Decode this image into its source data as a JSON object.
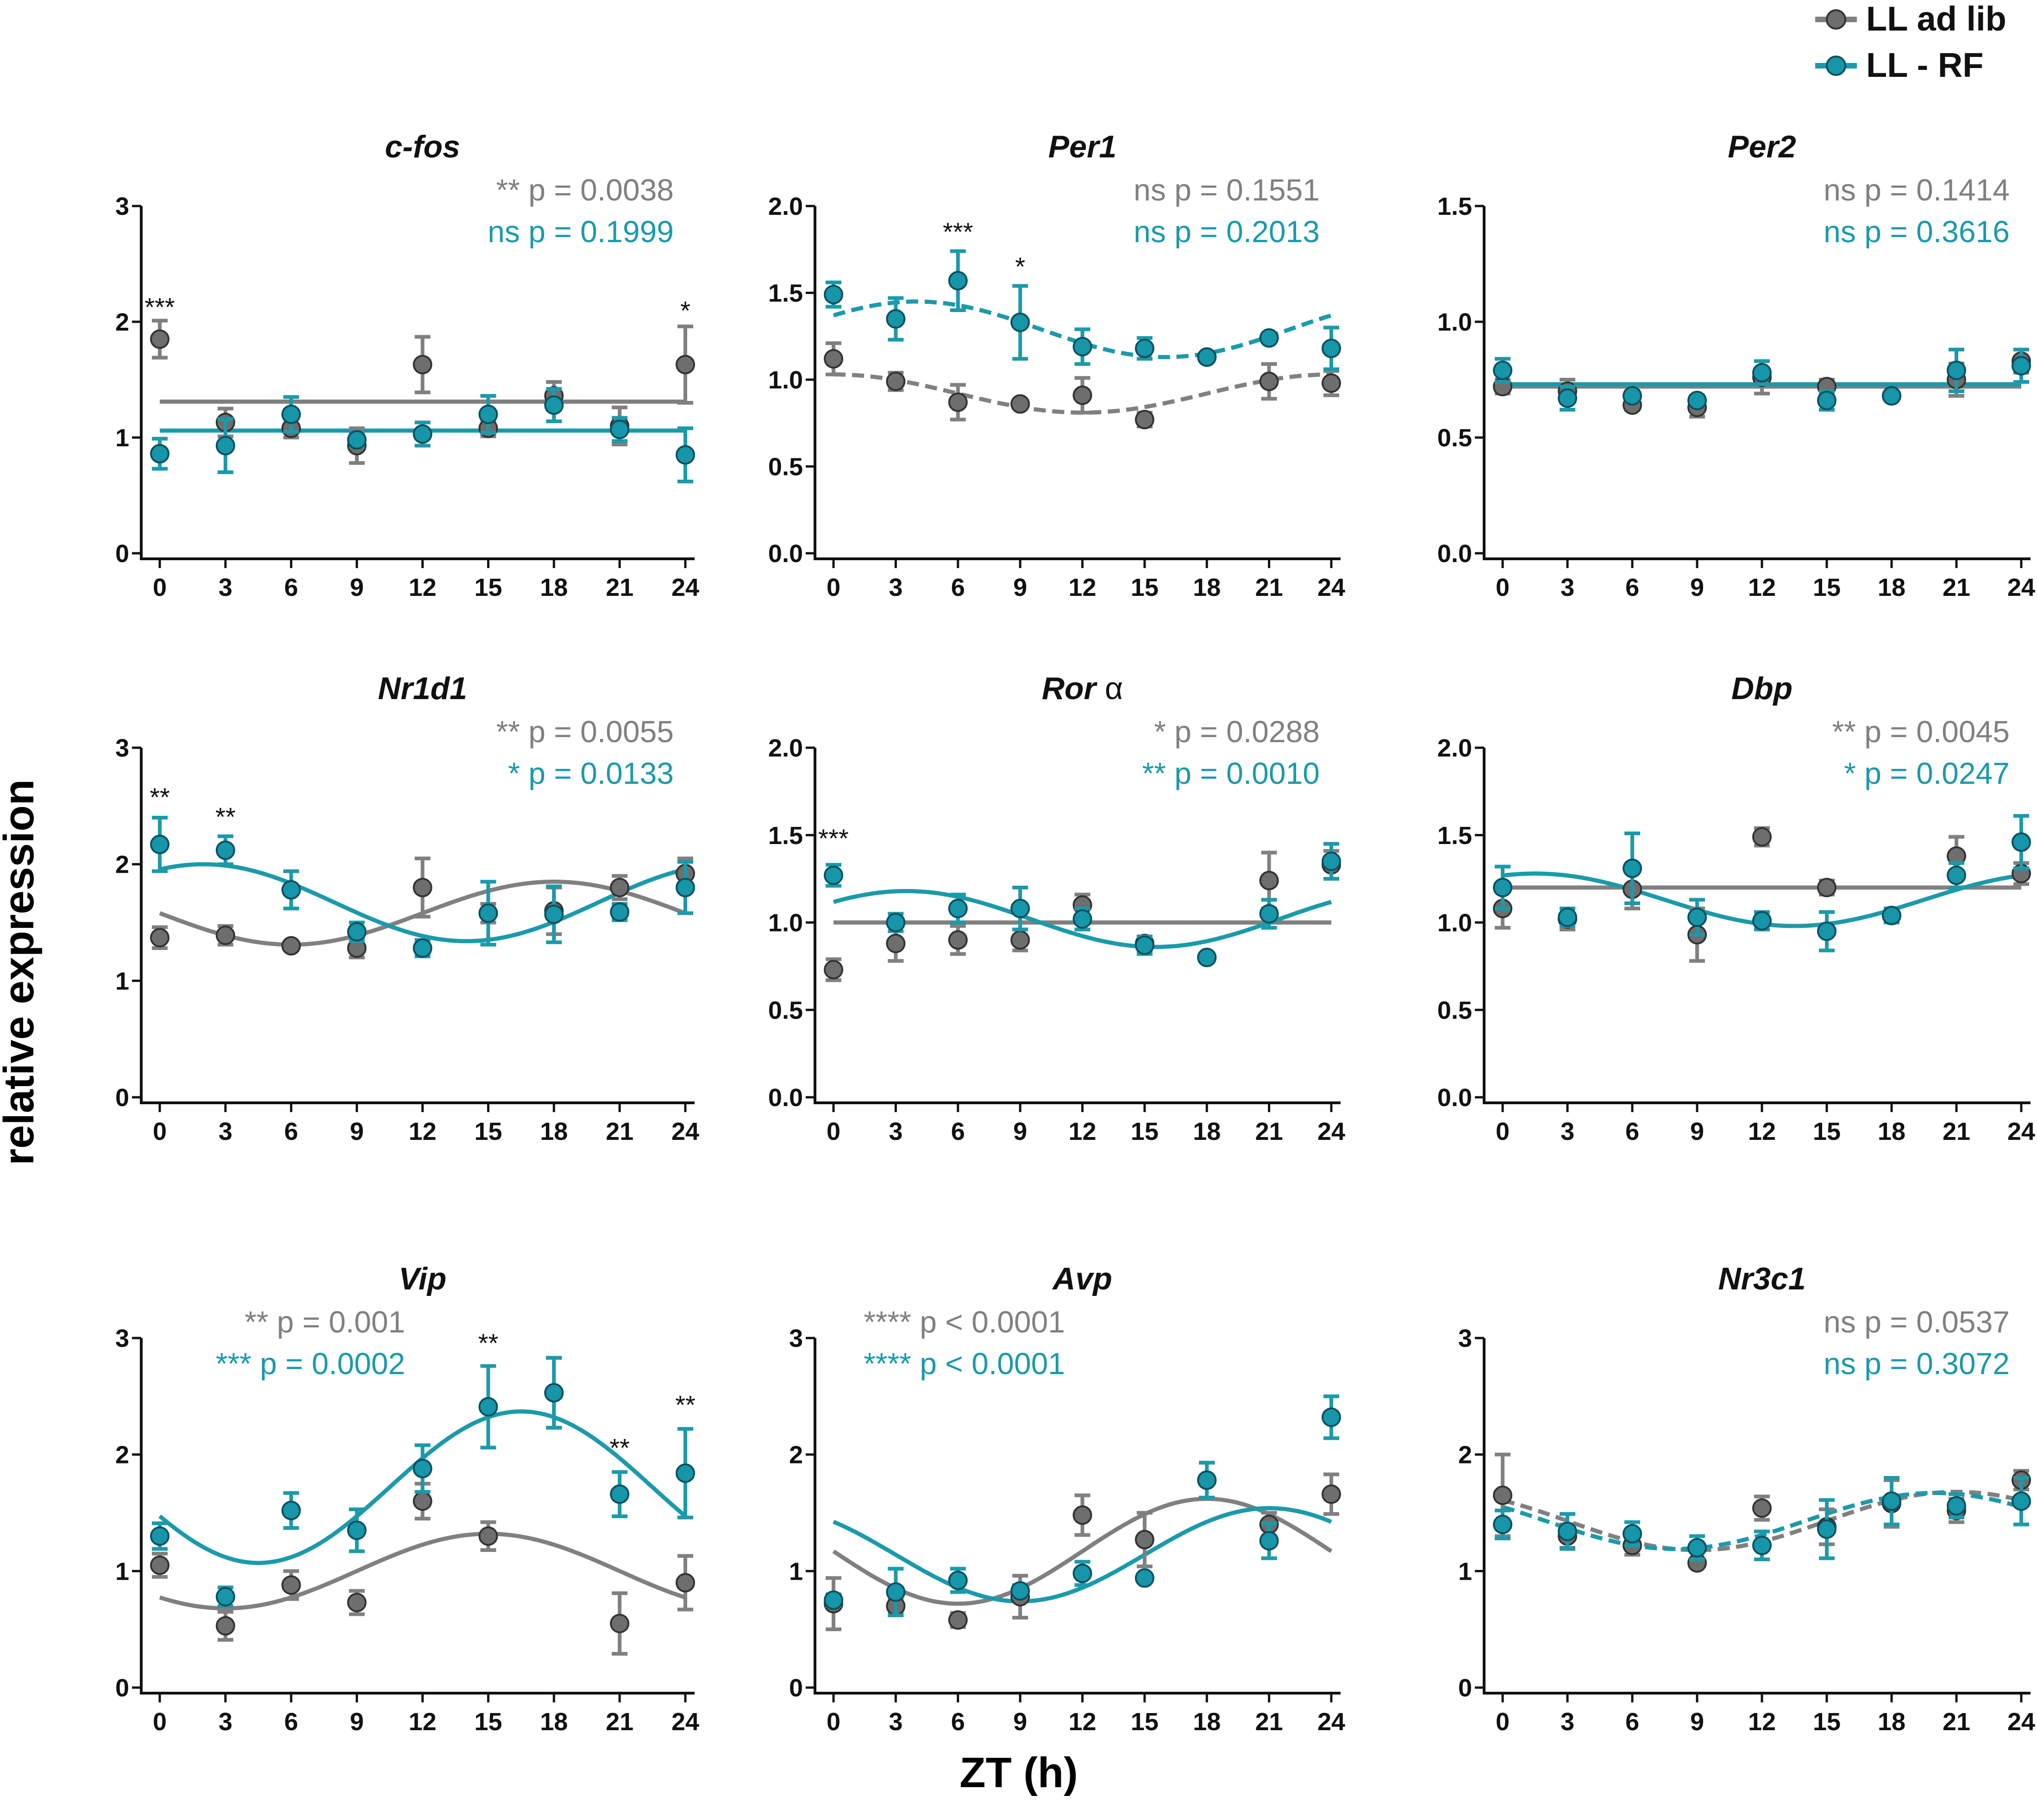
{
  "colors": {
    "adlib": "#808080",
    "rf": "#1b9aaa",
    "adlib_point": "#6e6e6e",
    "rf_point": "#1696a8",
    "axis": "#111111"
  },
  "legend": {
    "adlib_label": "LL ad lib",
    "rf_label": "LL - RF"
  },
  "xlabel": "ZT (h)",
  "ylabel": "relative expression",
  "chart_data": [
    {
      "type": "scatter",
      "title": "c-fos",
      "title_suffix": "",
      "ylim": [
        0,
        3
      ],
      "yticks": [
        "0",
        "1",
        "2",
        "3"
      ],
      "x": [
        0,
        3,
        6,
        9,
        12,
        15,
        18,
        21,
        24
      ],
      "xticks": [
        "0",
        "3",
        "6",
        "9",
        "12",
        "15",
        "18",
        "21",
        "24"
      ],
      "stat_adlib": {
        "stars": "**",
        "text": "p = 0.0038"
      },
      "stat_rf": {
        "stars": "ns",
        "text": "p = 0.1999"
      },
      "series": [
        {
          "name": "LL ad lib",
          "values": [
            1.85,
            1.13,
            1.08,
            0.93,
            1.63,
            1.08,
            1.36,
            1.1,
            1.63
          ],
          "errors": [
            0.16,
            0.12,
            0.08,
            0.15,
            0.24,
            0.07,
            0.12,
            0.16,
            0.33
          ],
          "fit": {
            "kind": "flat",
            "mesor": 1.31,
            "dashed": false
          }
        },
        {
          "name": "LL - RF",
          "values": [
            0.86,
            0.93,
            1.2,
            0.98,
            1.03,
            1.2,
            1.28,
            1.07,
            0.85
          ],
          "errors": [
            0.13,
            0.23,
            0.15,
            0.06,
            0.1,
            0.16,
            0.14,
            0.1,
            0.23
          ],
          "fit": {
            "kind": "flat",
            "mesor": 1.06,
            "dashed": false
          }
        }
      ],
      "annotations": [
        {
          "x": 0,
          "y": 2.05,
          "text": "***"
        },
        {
          "x": 24,
          "y": 2.02,
          "text": "*"
        }
      ]
    },
    {
      "type": "scatter",
      "title": "Per1",
      "title_suffix": "",
      "ylim": [
        0,
        2.0
      ],
      "yticks": [
        "0.0",
        "0.5",
        "1.0",
        "1.5",
        "2.0"
      ],
      "x": [
        0,
        3,
        6,
        9,
        12,
        15,
        18,
        21,
        24
      ],
      "xticks": [
        "0",
        "3",
        "6",
        "9",
        "12",
        "15",
        "18",
        "21",
        "24"
      ],
      "stat_adlib": {
        "stars": "ns",
        "text": "p = 0.1551"
      },
      "stat_rf": {
        "stars": "ns",
        "text": "p = 0.2013"
      },
      "series": [
        {
          "name": "LL ad lib",
          "values": [
            1.12,
            0.99,
            0.87,
            0.86,
            0.91,
            0.77,
            1.13,
            0.99,
            0.98
          ],
          "errors": [
            0.09,
            0.05,
            0.1,
            0.01,
            0.1,
            0.04,
            0.01,
            0.1,
            0.07
          ],
          "fit": {
            "kind": "cos",
            "mesor": 0.92,
            "amp": 0.11,
            "acrophase": 0,
            "dashed": true
          }
        },
        {
          "name": "LL - RF",
          "values": [
            1.49,
            1.35,
            1.57,
            1.33,
            1.19,
            1.18,
            1.13,
            1.24,
            1.18
          ],
          "errors": [
            0.07,
            0.12,
            0.17,
            0.21,
            0.1,
            0.06,
            0.01,
            0.01,
            0.12
          ],
          "fit": {
            "kind": "cos",
            "mesor": 1.29,
            "amp": 0.16,
            "acrophase": 4,
            "dashed": true
          }
        }
      ],
      "annotations": [
        {
          "x": 6,
          "y": 1.8,
          "text": "***"
        },
        {
          "x": 9,
          "y": 1.6,
          "text": "*"
        }
      ]
    },
    {
      "type": "scatter",
      "title": "Per2",
      "title_suffix": "",
      "ylim": [
        0,
        1.5
      ],
      "yticks": [
        "0.0",
        "0.5",
        "1.0",
        "1.5"
      ],
      "x": [
        0,
        3,
        6,
        9,
        12,
        15,
        18,
        21,
        24
      ],
      "xticks": [
        "0",
        "3",
        "6",
        "9",
        "12",
        "15",
        "18",
        "21",
        "24"
      ],
      "stat_adlib": {
        "stars": "ns",
        "text": "p = 0.1414"
      },
      "stat_rf": {
        "stars": "ns",
        "text": "p = 0.3616"
      },
      "series": [
        {
          "name": "LL ad lib",
          "values": [
            0.72,
            0.7,
            0.64,
            0.63,
            0.76,
            0.72,
            0.68,
            0.75,
            0.83
          ],
          "errors": [
            0.03,
            0.05,
            0.02,
            0.04,
            0.07,
            0.03,
            0.01,
            0.07,
            0.05
          ],
          "fit": {
            "kind": "flat",
            "mesor": 0.72,
            "dashed": false
          }
        },
        {
          "name": "LL - RF",
          "values": [
            0.79,
            0.67,
            0.68,
            0.66,
            0.78,
            0.66,
            0.68,
            0.79,
            0.81
          ],
          "errors": [
            0.05,
            0.05,
            0.02,
            0.02,
            0.05,
            0.04,
            0.01,
            0.09,
            0.07
          ],
          "fit": {
            "kind": "flat",
            "mesor": 0.73,
            "dashed": false
          }
        }
      ],
      "annotations": []
    },
    {
      "type": "scatter",
      "title": "Nr1d1",
      "title_suffix": "",
      "ylim": [
        0,
        3
      ],
      "yticks": [
        "0",
        "1",
        "2",
        "3"
      ],
      "x": [
        0,
        3,
        6,
        9,
        12,
        15,
        18,
        21,
        24
      ],
      "xticks": [
        "0",
        "3",
        "6",
        "9",
        "12",
        "15",
        "18",
        "21",
        "24"
      ],
      "stat_adlib": {
        "stars": "**",
        "text": "p = 0.0055"
      },
      "stat_rf": {
        "stars": "*",
        "text": "p = 0.0133"
      },
      "series": [
        {
          "name": "LL ad lib",
          "values": [
            1.37,
            1.39,
            1.3,
            1.28,
            1.8,
            1.58,
            1.6,
            1.8,
            1.92
          ],
          "errors": [
            0.09,
            0.08,
            0.02,
            0.08,
            0.25,
            0.08,
            0.2,
            0.1,
            0.13
          ],
          "fit": {
            "kind": "cos",
            "mesor": 1.58,
            "amp": 0.27,
            "acrophase": 18,
            "dashed": false
          }
        },
        {
          "name": "LL - RF",
          "values": [
            2.17,
            2.12,
            1.78,
            1.42,
            1.28,
            1.58,
            1.57,
            1.59,
            1.8
          ],
          "errors": [
            0.23,
            0.12,
            0.16,
            0.08,
            0.07,
            0.27,
            0.24,
            0.07,
            0.22
          ],
          "fit": {
            "kind": "cos",
            "mesor": 1.67,
            "amp": 0.33,
            "acrophase": 2,
            "dashed": false
          }
        }
      ],
      "annotations": [
        {
          "x": 0,
          "y": 2.5,
          "text": "**"
        },
        {
          "x": 3,
          "y": 2.33,
          "text": "**"
        }
      ]
    },
    {
      "type": "scatter",
      "title": "Ror",
      "title_suffix": " α",
      "ylim": [
        0,
        2.0
      ],
      "yticks": [
        "0.0",
        "0.5",
        "1.0",
        "1.5",
        "2.0"
      ],
      "x": [
        0,
        3,
        6,
        9,
        12,
        15,
        18,
        21,
        24
      ],
      "xticks": [
        "0",
        "3",
        "6",
        "9",
        "12",
        "15",
        "18",
        "21",
        "24"
      ],
      "stat_adlib": {
        "stars": "*",
        "text": "p = 0.0288"
      },
      "stat_rf": {
        "stars": "**",
        "text": "p = 0.0010"
      },
      "series": [
        {
          "name": "LL ad lib",
          "values": [
            0.73,
            0.88,
            0.9,
            0.9,
            1.1,
            0.88,
            0.8,
            1.24,
            1.33
          ],
          "errors": [
            0.06,
            0.1,
            0.08,
            0.06,
            0.06,
            0.04,
            0.01,
            0.16,
            0.08
          ],
          "fit": {
            "kind": "flat",
            "mesor": 1.0,
            "dashed": false
          }
        },
        {
          "name": "LL - RF",
          "values": [
            1.27,
            1.0,
            1.08,
            1.08,
            1.02,
            0.87,
            0.8,
            1.05,
            1.35
          ],
          "errors": [
            0.06,
            0.05,
            0.08,
            0.12,
            0.06,
            0.05,
            0.01,
            0.08,
            0.1
          ],
          "fit": {
            "kind": "cos",
            "mesor": 1.02,
            "amp": 0.16,
            "acrophase": 3.5,
            "dashed": false
          }
        }
      ],
      "annotations": [
        {
          "x": 0,
          "y": 1.43,
          "text": "***"
        }
      ]
    },
    {
      "type": "scatter",
      "title": "Dbp",
      "title_suffix": "",
      "ylim": [
        0,
        2.0
      ],
      "yticks": [
        "0.0",
        "0.5",
        "1.0",
        "1.5",
        "2.0"
      ],
      "x": [
        0,
        3,
        6,
        9,
        12,
        15,
        18,
        21,
        24
      ],
      "xticks": [
        "0",
        "3",
        "6",
        "9",
        "12",
        "15",
        "18",
        "21",
        "24"
      ],
      "stat_adlib": {
        "stars": "**",
        "text": "p = 0.0045"
      },
      "stat_rf": {
        "stars": "*",
        "text": "p = 0.0247"
      },
      "series": [
        {
          "name": "LL ad lib",
          "values": [
            1.08,
            1.02,
            1.19,
            0.93,
            1.49,
            1.2,
            1.04,
            1.38,
            1.28
          ],
          "errors": [
            0.11,
            0.06,
            0.11,
            0.15,
            0.05,
            0.04,
            0.04,
            0.11,
            0.06
          ],
          "fit": {
            "kind": "flat",
            "mesor": 1.2,
            "dashed": false
          }
        },
        {
          "name": "LL - RF",
          "values": [
            1.2,
            1.03,
            1.31,
            1.03,
            1.01,
            0.95,
            1.04,
            1.27,
            1.46
          ],
          "errors": [
            0.12,
            0.05,
            0.2,
            0.1,
            0.05,
            0.11,
            0.04,
            0.07,
            0.15
          ],
          "fit": {
            "kind": "cos",
            "mesor": 1.13,
            "amp": 0.15,
            "acrophase": 1.5,
            "dashed": false
          }
        }
      ],
      "annotations": []
    },
    {
      "type": "scatter",
      "title": "Vip",
      "title_suffix": "",
      "ylim": [
        0,
        3
      ],
      "yticks": [
        "0",
        "1",
        "2",
        "3"
      ],
      "x": [
        0,
        3,
        6,
        9,
        12,
        15,
        18,
        21,
        24
      ],
      "xticks": [
        "0",
        "3",
        "6",
        "9",
        "12",
        "15",
        "18",
        "21",
        "24"
      ],
      "stat_adlib": {
        "stars": "**",
        "text": "p = 0.001"
      },
      "stat_rf": {
        "stars": "***",
        "text": "p = 0.0002"
      },
      "series": [
        {
          "name": "LL ad lib",
          "values": [
            1.05,
            0.53,
            0.88,
            0.73,
            1.6,
            1.3,
            2.53,
            0.55,
            0.9
          ],
          "errors": [
            0.1,
            0.12,
            0.12,
            0.1,
            0.15,
            0.12,
            0.3,
            0.26,
            0.23
          ],
          "fit": {
            "kind": "cos",
            "mesor": 1.0,
            "amp": 0.32,
            "acrophase": 15,
            "dashed": false
          }
        },
        {
          "name": "LL - RF",
          "values": [
            1.3,
            0.78,
            1.52,
            1.35,
            1.88,
            2.41,
            2.53,
            1.66,
            1.84
          ],
          "errors": [
            0.11,
            0.08,
            0.15,
            0.18,
            0.2,
            0.35,
            0.3,
            0.19,
            0.38
          ],
          "fit": {
            "kind": "cos",
            "mesor": 1.72,
            "amp": 0.65,
            "acrophase": 16.5,
            "dashed": false
          }
        }
      ],
      "annotations": [
        {
          "x": 15,
          "y": 2.88,
          "text": "**"
        },
        {
          "x": 21,
          "y": 1.98,
          "text": "**"
        },
        {
          "x": 24,
          "y": 2.35,
          "text": "**"
        }
      ]
    },
    {
      "type": "scatter",
      "title": "Avp",
      "title_suffix": "",
      "ylim": [
        0,
        3
      ],
      "yticks": [
        "0",
        "1",
        "2",
        "3"
      ],
      "x": [
        0,
        3,
        6,
        9,
        12,
        15,
        18,
        21,
        24
      ],
      "xticks": [
        "0",
        "3",
        "6",
        "9",
        "12",
        "15",
        "18",
        "21",
        "24"
      ],
      "stat_adlib": {
        "stars": "****",
        "text": "p < 0.0001"
      },
      "stat_rf": {
        "stars": "****",
        "text": "p < 0.0001"
      },
      "series": [
        {
          "name": "LL ad lib",
          "values": [
            0.72,
            0.7,
            0.58,
            0.78,
            1.48,
            1.27,
            1.78,
            1.4,
            1.66
          ],
          "errors": [
            0.22,
            0.05,
            0.06,
            0.18,
            0.17,
            0.23,
            0.15,
            0.1,
            0.17
          ],
          "fit": {
            "kind": "cos",
            "mesor": 1.17,
            "amp": 0.45,
            "acrophase": 18,
            "dashed": false
          }
        },
        {
          "name": "LL - RF",
          "values": [
            0.75,
            0.82,
            0.92,
            0.83,
            0.98,
            0.94,
            1.78,
            1.26,
            2.32
          ],
          "errors": [
            0.05,
            0.2,
            0.1,
            0.05,
            0.1,
            0.01,
            0.15,
            0.15,
            0.18
          ],
          "fit": {
            "kind": "cos",
            "mesor": 1.14,
            "amp": 0.4,
            "acrophase": 21,
            "dashed": false
          }
        }
      ],
      "annotations": []
    },
    {
      "type": "scatter",
      "title": "Nr3c1",
      "title_suffix": "",
      "ylim": [
        0,
        3
      ],
      "yticks": [
        "0",
        "1",
        "2",
        "3"
      ],
      "x": [
        0,
        3,
        6,
        9,
        12,
        15,
        18,
        21,
        24
      ],
      "xticks": [
        "0",
        "3",
        "6",
        "9",
        "12",
        "15",
        "18",
        "21",
        "24"
      ],
      "stat_adlib": {
        "stars": "ns",
        "text": "p = 0.0537"
      },
      "stat_rf": {
        "stars": "ns",
        "text": "p = 0.3072"
      },
      "series": [
        {
          "name": "LL ad lib",
          "values": [
            1.65,
            1.3,
            1.22,
            1.07,
            1.54,
            1.38,
            1.58,
            1.52,
            1.78
          ],
          "errors": [
            0.35,
            0.1,
            0.08,
            0.03,
            0.1,
            0.15,
            0.2,
            0.1,
            0.08
          ],
          "fit": {
            "kind": "cos",
            "mesor": 1.43,
            "amp": 0.25,
            "acrophase": 21,
            "dashed": true
          }
        },
        {
          "name": "LL - RF",
          "values": [
            1.4,
            1.34,
            1.32,
            1.2,
            1.22,
            1.36,
            1.6,
            1.56,
            1.6
          ],
          "errors": [
            0.12,
            0.15,
            0.1,
            0.1,
            0.12,
            0.25,
            0.2,
            0.1,
            0.2
          ],
          "fit": {
            "kind": "cos",
            "mesor": 1.43,
            "amp": 0.24,
            "acrophase": 20,
            "dashed": true
          }
        }
      ],
      "annotations": []
    }
  ]
}
